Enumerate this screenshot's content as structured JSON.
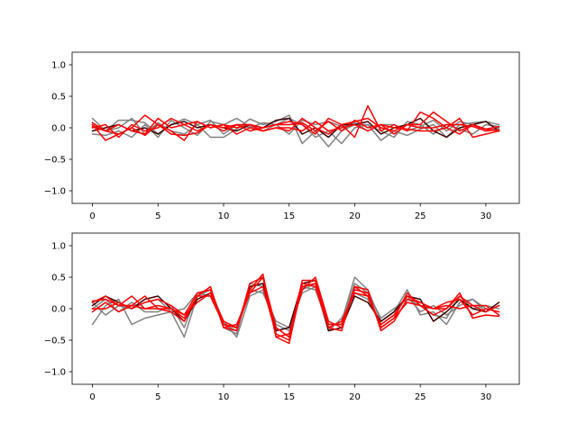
{
  "figure": {
    "background": "#ffffff"
  },
  "chart_data": [
    {
      "type": "line",
      "title": "",
      "xlabel": "",
      "ylabel": "",
      "xlim": [
        -1.55,
        32.55
      ],
      "ylim": [
        -1.2,
        1.2
      ],
      "xticks": [
        0,
        5,
        10,
        15,
        20,
        25,
        30
      ],
      "yticks": [
        -1.0,
        -0.5,
        0.0,
        0.5,
        1.0
      ],
      "ytick_labels": [
        "−1.0",
        "−0.5",
        "0.0",
        "0.5",
        "1.0"
      ],
      "grid": false,
      "legend": "none",
      "x": [
        0,
        1,
        2,
        3,
        4,
        5,
        6,
        7,
        8,
        9,
        10,
        11,
        12,
        13,
        14,
        15,
        16,
        17,
        18,
        19,
        20,
        21,
        22,
        23,
        24,
        25,
        26,
        27,
        28,
        29,
        30,
        31
      ],
      "series": [
        {
          "color": "#808080",
          "values": [
            0.15,
            -0.05,
            0.12,
            0.12,
            0.08,
            -0.1,
            0.05,
            0.14,
            0.05,
            -0.15,
            -0.15,
            -0.02,
            0.14,
            0.05,
            0.1,
            0.2,
            -0.25,
            -0.05,
            -0.3,
            -0.05,
            0.05,
            0.05,
            -0.2,
            -0.05,
            -0.12,
            -0.02,
            0.05,
            -0.15,
            0.05,
            0.08,
            0.1,
            0.05
          ]
        },
        {
          "color": "#808080",
          "values": [
            -0.1,
            -0.12,
            -0.05,
            -0.15,
            0.05,
            -0.15,
            0.12,
            0.0,
            -0.12,
            0.1,
            0.05,
            0.15,
            0.02,
            -0.05,
            0.05,
            0.15,
            0.05,
            -0.15,
            -0.05,
            -0.25,
            0.0,
            0.05,
            -0.05,
            -0.15,
            0.1,
            0.05,
            -0.1,
            0.05,
            -0.02,
            -0.1,
            0.05,
            0.02
          ]
        },
        {
          "color": "#808080",
          "values": [
            0.05,
            -0.05,
            0.0,
            0.15,
            -0.1,
            0.08,
            -0.05,
            -0.1,
            0.05,
            0.12,
            -0.1,
            0.05,
            0.0,
            0.08,
            0.05,
            -0.1,
            0.12,
            0.05,
            0.1,
            0.02,
            0.08,
            -0.05,
            0.05,
            0.05,
            -0.05,
            0.02,
            0.12,
            -0.05,
            0.1,
            0.05,
            -0.05,
            0.0
          ]
        },
        {
          "color": "#3a0000",
          "values": [
            -0.05,
            0.0,
            0.05,
            -0.05,
            0.0,
            -0.1,
            0.05,
            0.1,
            0.0,
            0.05,
            0.0,
            -0.05,
            0.05,
            0.0,
            0.12,
            0.15,
            -0.1,
            0.0,
            -0.15,
            0.05,
            0.05,
            0.1,
            -0.1,
            0.0,
            0.05,
            0.15,
            -0.05,
            -0.15,
            0.0,
            0.05,
            0.1,
            -0.05
          ]
        },
        {
          "color": "#ff0000",
          "values": [
            0.05,
            -0.2,
            -0.1,
            0.0,
            0.2,
            0.05,
            -0.05,
            -0.2,
            0.1,
            0.0,
            0.05,
            -0.1,
            0.0,
            -0.05,
            0.0,
            -0.05,
            0.15,
            0.0,
            -0.1,
            0.05,
            -0.15,
            0.35,
            -0.05,
            0.05,
            -0.05,
            0.25,
            0.15,
            0.0,
            0.15,
            -0.15,
            -0.1,
            -0.05
          ]
        },
        {
          "color": "#ff0000",
          "values": [
            0.0,
            0.05,
            -0.15,
            0.05,
            -0.05,
            0.0,
            0.15,
            0.05,
            -0.05,
            0.05,
            -0.05,
            0.05,
            -0.05,
            0.0,
            0.05,
            0.1,
            0.05,
            -0.1,
            0.15,
            0.05,
            0.1,
            0.15,
            0.0,
            -0.05,
            0.05,
            0.05,
            0.25,
            0.1,
            -0.05,
            0.05,
            -0.02,
            -0.05
          ]
        },
        {
          "color": "#ff0000",
          "values": [
            0.02,
            -0.05,
            0.05,
            -0.05,
            -0.1,
            0.15,
            0.0,
            0.05,
            0.1,
            0.0,
            0.05,
            0.0,
            0.05,
            -0.05,
            0.0,
            0.0,
            -0.05,
            0.1,
            -0.05,
            0.0,
            0.05,
            -0.05,
            0.05,
            0.0,
            -0.02,
            -0.05,
            -0.05,
            0.0,
            -0.1,
            0.05,
            -0.02,
            0.02
          ]
        },
        {
          "color": "#ff0000",
          "values": [
            0.08,
            -0.05,
            -0.1,
            0.0,
            -0.12,
            0.05,
            -0.1,
            -0.12,
            -0.08,
            0.05,
            0.0,
            0.05,
            0.05,
            0.0,
            0.05,
            0.05,
            0.08,
            -0.05,
            0.1,
            -0.05,
            0.12,
            0.0,
            0.05,
            -0.1,
            0.05,
            0.0,
            0.0,
            0.05,
            0.05,
            0.02,
            -0.05,
            -0.03
          ]
        }
      ]
    },
    {
      "type": "line",
      "title": "",
      "xlabel": "",
      "ylabel": "",
      "xlim": [
        -1.55,
        32.55
      ],
      "ylim": [
        -1.2,
        1.2
      ],
      "xticks": [
        0,
        5,
        10,
        15,
        20,
        25,
        30
      ],
      "yticks": [
        -1.0,
        -0.5,
        0.0,
        0.5,
        1.0
      ],
      "ytick_labels": [
        "−1.0",
        "−0.5",
        "0.0",
        "0.5",
        "1.0"
      ],
      "grid": false,
      "legend": "none",
      "x": [
        0,
        1,
        2,
        3,
        4,
        5,
        6,
        7,
        8,
        9,
        10,
        11,
        12,
        13,
        14,
        15,
        16,
        17,
        18,
        19,
        20,
        21,
        22,
        23,
        24,
        25,
        26,
        27,
        28,
        29,
        30,
        31
      ],
      "series": [
        {
          "color": "#808080",
          "values": [
            -0.25,
            0.05,
            0.15,
            -0.25,
            -0.15,
            -0.1,
            -0.05,
            -0.45,
            0.2,
            0.3,
            -0.2,
            -0.45,
            0.2,
            0.3,
            -0.25,
            -0.35,
            0.3,
            0.4,
            -0.3,
            -0.2,
            0.5,
            0.3,
            -0.2,
            -0.05,
            0.3,
            -0.1,
            -0.05,
            -0.25,
            0.1,
            0.15,
            -0.05,
            0.05
          ]
        },
        {
          "color": "#808080",
          "values": [
            0.1,
            -0.1,
            0.05,
            0.0,
            0.1,
            0.15,
            -0.05,
            0.0,
            0.25,
            0.3,
            -0.3,
            -0.4,
            0.4,
            0.35,
            -0.3,
            -0.45,
            0.35,
            0.3,
            -0.25,
            -0.25,
            0.4,
            0.25,
            -0.15,
            0.0,
            0.15,
            0.05,
            -0.1,
            -0.15,
            0.2,
            0.0,
            0.05,
            0.0
          ]
        },
        {
          "color": "#808080",
          "values": [
            0.0,
            0.15,
            -0.05,
            0.1,
            -0.05,
            -0.05,
            0.05,
            -0.3,
            0.25,
            0.2,
            -0.25,
            -0.35,
            0.3,
            0.25,
            -0.2,
            -0.3,
            0.25,
            0.35,
            -0.35,
            -0.15,
            0.25,
            0.15,
            -0.25,
            -0.1,
            0.2,
            -0.05,
            0.05,
            -0.1,
            0.05,
            0.15,
            0.0,
            -0.05
          ]
        },
        {
          "color": "#3a0000",
          "values": [
            0.05,
            0.2,
            0.1,
            0.0,
            0.15,
            0.2,
            0.0,
            -0.2,
            0.15,
            0.25,
            -0.25,
            -0.3,
            0.35,
            0.4,
            -0.35,
            -0.3,
            0.4,
            0.45,
            -0.35,
            -0.3,
            0.2,
            0.1,
            -0.2,
            -0.05,
            0.2,
            0.15,
            -0.2,
            -0.05,
            0.15,
            0.0,
            -0.05,
            0.1
          ]
        },
        {
          "color": "#ff0000",
          "values": [
            0.12,
            0.15,
            0.05,
            0.2,
            0.0,
            0.05,
            0.0,
            -0.1,
            0.1,
            0.25,
            -0.2,
            -0.3,
            0.3,
            0.55,
            -0.45,
            -0.55,
            0.4,
            0.35,
            -0.3,
            -0.35,
            0.35,
            0.2,
            -0.3,
            -0.15,
            0.25,
            0.05,
            0.0,
            0.05,
            0.0,
            0.05,
            -0.05,
            0.05
          ]
        },
        {
          "color": "#ff0000",
          "values": [
            -0.05,
            0.1,
            -0.05,
            0.05,
            0.2,
            0.0,
            -0.05,
            -0.2,
            0.2,
            0.35,
            -0.3,
            -0.25,
            0.25,
            0.5,
            -0.45,
            -0.4,
            0.3,
            0.5,
            -0.2,
            -0.3,
            0.35,
            0.3,
            -0.35,
            -0.2,
            0.15,
            0.1,
            0.0,
            0.1,
            0.15,
            -0.1,
            0.0,
            -0.05
          ]
        },
        {
          "color": "#ff0000",
          "values": [
            0.0,
            0.0,
            0.1,
            0.0,
            0.1,
            0.15,
            0.05,
            -0.1,
            0.25,
            0.3,
            -0.3,
            -0.35,
            0.4,
            0.5,
            -0.3,
            -0.45,
            0.45,
            0.45,
            -0.3,
            -0.2,
            0.25,
            0.2,
            -0.25,
            -0.1,
            0.2,
            0.1,
            0.0,
            0.0,
            0.2,
            0.05,
            0.05,
            -0.1
          ]
        },
        {
          "color": "#ff0000",
          "values": [
            0.1,
            0.2,
            0.05,
            0.05,
            0.0,
            0.0,
            0.0,
            -0.15,
            0.2,
            0.2,
            -0.25,
            -0.3,
            0.25,
            0.35,
            -0.4,
            -0.5,
            0.35,
            0.4,
            -0.25,
            -0.25,
            0.3,
            0.25,
            -0.3,
            -0.15,
            0.1,
            0.05,
            -0.1,
            0.0,
            0.25,
            -0.15,
            -0.1,
            -0.12
          ]
        }
      ]
    }
  ]
}
